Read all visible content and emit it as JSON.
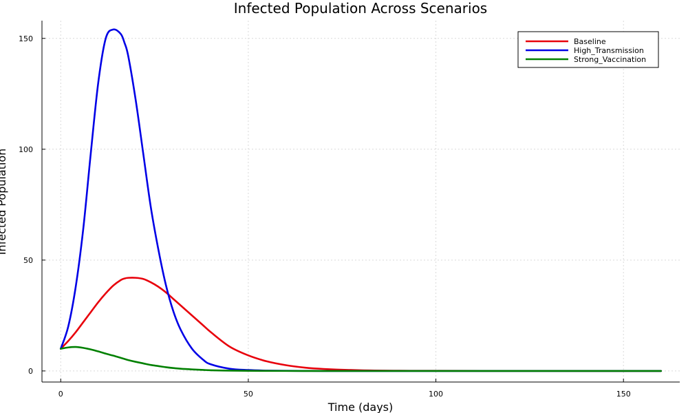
{
  "chart_data": {
    "type": "line",
    "title": "Infected Population Across Scenarios",
    "xlabel": "Time (days)",
    "ylabel": "Infected Population",
    "xlim": [
      -5,
      165
    ],
    "ylim": [
      -5,
      158
    ],
    "xticks": [
      0,
      50,
      100,
      150
    ],
    "yticks": [
      0,
      50,
      100,
      150
    ],
    "grid": true,
    "legend_position": "top-right",
    "x": [
      0,
      2,
      4,
      6,
      8,
      10,
      12,
      14,
      16,
      17,
      18,
      20,
      22,
      24,
      26,
      28,
      30,
      32,
      35,
      38,
      40,
      45,
      50,
      55,
      60,
      65,
      70,
      80,
      90,
      100,
      120,
      140,
      160
    ],
    "series": [
      {
        "name": "Baseline",
        "color": "#e8000b",
        "values": [
          10,
          13.5,
          17.5,
          22,
          26.5,
          31,
          35,
          38.5,
          41,
          41.7,
          42,
          42,
          41.5,
          40,
          38,
          35.5,
          32.5,
          29.5,
          25,
          20.5,
          17.5,
          11,
          7,
          4.3,
          2.6,
          1.5,
          0.9,
          0.3,
          0.1,
          0.05,
          0.01,
          0,
          0
        ]
      },
      {
        "name": "High_Transmission",
        "color": "#0000e6",
        "values": [
          10,
          20,
          38,
          64,
          98,
          130,
          150,
          154,
          152,
          148,
          142,
          122,
          98,
          74,
          55,
          39,
          27,
          18.5,
          10,
          5,
          3,
          1,
          0.4,
          0.15,
          0.05,
          0.02,
          0,
          0,
          0,
          0,
          0,
          0,
          0
        ]
      },
      {
        "name": "Strong_Vaccination",
        "color": "#008000",
        "values": [
          10,
          10.6,
          10.8,
          10.4,
          9.7,
          8.8,
          7.8,
          6.9,
          5.9,
          5.4,
          4.9,
          4.1,
          3.4,
          2.7,
          2.2,
          1.7,
          1.3,
          1.0,
          0.7,
          0.45,
          0.3,
          0.15,
          0.06,
          0.03,
          0.01,
          0,
          0,
          0,
          0,
          0,
          0,
          0,
          0
        ]
      }
    ]
  }
}
